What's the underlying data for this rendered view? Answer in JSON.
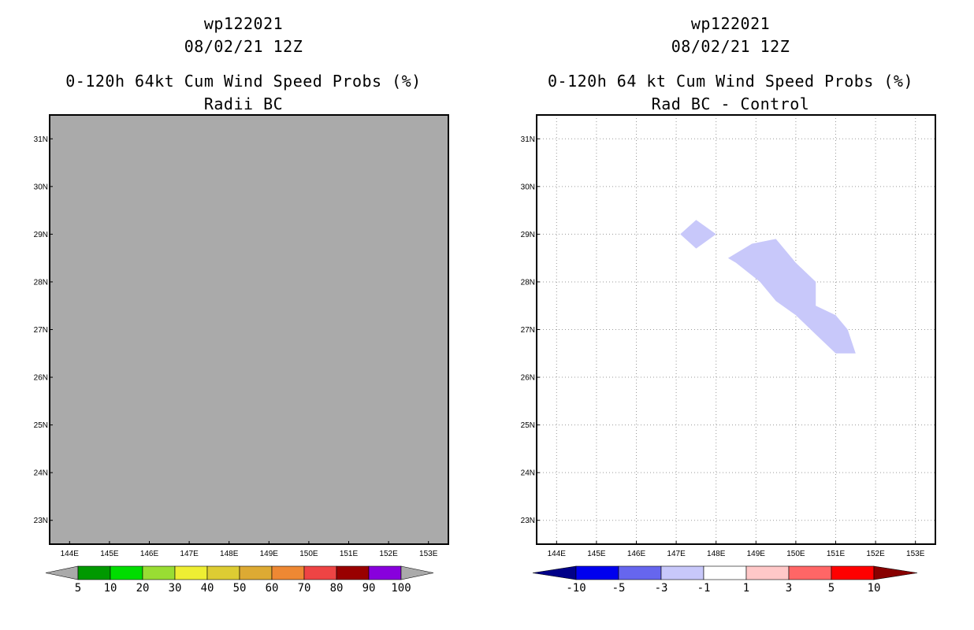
{
  "left": {
    "title_line1": "wp122021",
    "title_line2": "08/02/21 12Z",
    "title_line3": "0-120h 64kt Cum Wind Speed Probs (%)",
    "title_line4": "Radii BC",
    "fill_color": "#aaaaaa",
    "colorbar": {
      "colors": [
        "#aaaaaa",
        "#009900",
        "#00dd00",
        "#99dd33",
        "#eeee33",
        "#ddcc33",
        "#ddaa33",
        "#ee8833",
        "#ee4444",
        "#990000",
        "#8800dd",
        "#aaaaaa"
      ],
      "labels": [
        "5",
        "10",
        "20",
        "30",
        "40",
        "50",
        "60",
        "70",
        "80",
        "90",
        "100"
      ]
    }
  },
  "right": {
    "title_line1": "wp122021",
    "title_line2": "08/02/21 12Z",
    "title_line3": "0-120h 64 kt Cum Wind Speed Probs (%)",
    "title_line4": "Rad BC - Control",
    "difference_color": "#c8c8fa",
    "difference_value_range": "-3 to -1",
    "difference_regions": [
      [
        [
          147.1,
          29.0
        ],
        [
          147.5,
          29.3
        ],
        [
          148.0,
          29.0
        ],
        [
          147.5,
          28.7
        ]
      ],
      [
        [
          148.3,
          28.5
        ],
        [
          148.9,
          28.8
        ],
        [
          149.5,
          28.9
        ],
        [
          150.0,
          28.4
        ],
        [
          150.5,
          28.0
        ],
        [
          150.5,
          27.5
        ],
        [
          151.0,
          27.3
        ],
        [
          151.3,
          27.0
        ],
        [
          151.5,
          26.5
        ],
        [
          151.0,
          26.5
        ],
        [
          150.5,
          26.9
        ],
        [
          150.0,
          27.3
        ],
        [
          149.5,
          27.6
        ],
        [
          149.1,
          28.0
        ],
        [
          148.5,
          28.4
        ]
      ]
    ],
    "colorbar": {
      "colors": [
        "#000088",
        "#0000ee",
        "#6666ee",
        "#c8c8fa",
        "#ffffff",
        "#ffc8c8",
        "#ff6666",
        "#ff0000",
        "#880000"
      ],
      "labels": [
        "-10",
        "-5",
        "-3",
        "-1",
        "1",
        "3",
        "5",
        "10"
      ]
    }
  },
  "map": {
    "lon_ticks": [
      "144E",
      "145E",
      "146E",
      "147E",
      "148E",
      "149E",
      "150E",
      "151E",
      "152E",
      "153E"
    ],
    "lat_ticks": [
      "23N",
      "24N",
      "25N",
      "26N",
      "27N",
      "28N",
      "29N",
      "30N",
      "31N"
    ],
    "lon_values": [
      144,
      145,
      146,
      147,
      148,
      149,
      150,
      151,
      152,
      153
    ],
    "lat_values": [
      23,
      24,
      25,
      26,
      27,
      28,
      29,
      30,
      31
    ]
  }
}
